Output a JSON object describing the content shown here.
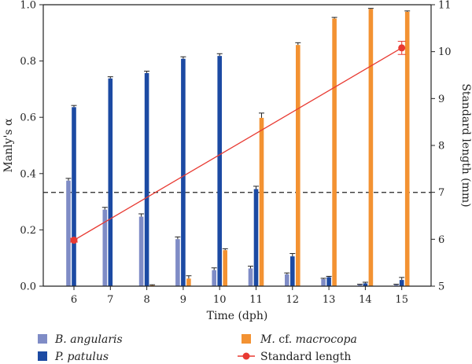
{
  "chart_data": {
    "type": "bar",
    "xlabel": "Time (dph)",
    "ylabel": "Manly's α",
    "y2label": "Standard length (mm)",
    "categories": [
      "6",
      "7",
      "8",
      "9",
      "10",
      "11",
      "12",
      "13",
      "14",
      "15"
    ],
    "ylim": [
      0,
      1.0
    ],
    "yticks": [
      "0.0",
      "0.2",
      "0.4",
      "0.6",
      "0.8",
      "1.0"
    ],
    "y2lim": [
      5,
      11
    ],
    "y2ticks": [
      "5",
      "6",
      "7",
      "8",
      "9",
      "10",
      "11"
    ],
    "reference_line": {
      "value": 0.333,
      "style": "dashed"
    },
    "series": [
      {
        "name": "B. angularis",
        "axis": "left",
        "color": "#7f8cc6",
        "values": [
          0.375,
          0.272,
          0.247,
          0.167,
          0.057,
          0.063,
          0.042,
          0.025,
          0.005,
          0.005
        ],
        "errors": [
          0.008,
          0.008,
          0.01,
          0.008,
          0.008,
          0.008,
          0.005,
          0.003,
          0.002,
          0.002
        ]
      },
      {
        "name": "P. patulus",
        "axis": "left",
        "color": "#1c4aa3",
        "values": [
          0.636,
          0.738,
          0.757,
          0.808,
          0.818,
          0.345,
          0.106,
          0.032,
          0.01,
          0.022
        ],
        "errors": [
          0.006,
          0.006,
          0.007,
          0.007,
          0.008,
          0.01,
          0.01,
          0.003,
          0.004,
          0.009
        ]
      },
      {
        "name": "M. cf. macrocopa",
        "axis": "left",
        "color": "#f39232",
        "values": [
          0,
          0,
          0.003,
          0.027,
          0.128,
          0.598,
          0.857,
          0.951,
          0.985,
          0.975
        ],
        "errors": [
          0,
          0,
          0.002,
          0.01,
          0.005,
          0.017,
          0.008,
          0.004,
          0.002,
          0.003
        ]
      },
      {
        "name": "Standard length",
        "axis": "right",
        "type": "line",
        "color": "#e83a32",
        "x": [
          "6",
          "15"
        ],
        "values": [
          5.98,
          10.08
        ],
        "errors": [
          0.04,
          0.14
        ]
      }
    ],
    "legend": {
      "placement": "bottom",
      "entries": [
        {
          "label": "B. angularis",
          "style": "italic",
          "marker": "bar",
          "color": "#7f8cc6"
        },
        {
          "label": "M. cf. macrocopa",
          "style": "mixed",
          "marker": "bar",
          "color": "#f39232"
        },
        {
          "label": "P. patulus",
          "style": "italic",
          "marker": "bar",
          "color": "#1c4aa3"
        },
        {
          "label": "Standard length",
          "style": "normal",
          "marker": "line-dot",
          "color": "#e83a32"
        }
      ]
    },
    "grid": false
  }
}
